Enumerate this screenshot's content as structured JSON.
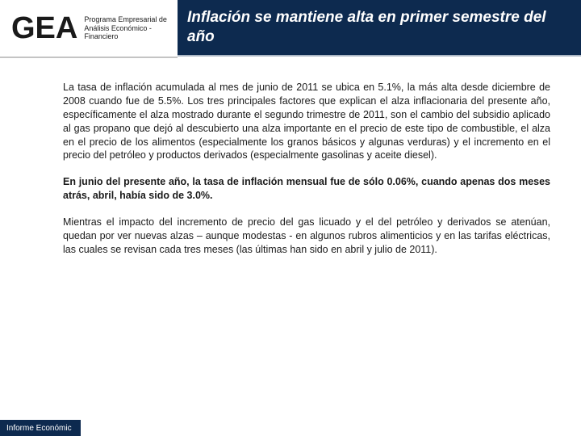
{
  "header": {
    "logo": "GEA",
    "logo_subtitle": "Programa Empresarial de\nAnálisis Económico -\nFinanciero",
    "title": "Inflación se mantiene alta en primer semestre del año",
    "header_bg": "#0d2a4f",
    "title_color": "#ffffff",
    "title_fontsize": 19
  },
  "body": {
    "paragraphs": [
      {
        "text": "La tasa de inflación acumulada al mes de junio de 2011 se ubica en 5.1%, la más alta desde diciembre de 2008 cuando fue de 5.5%. Los tres principales factores que explican el alza inflacionaria del presente año, específicamente el alza mostrado durante el segundo trimestre de 2011, son el cambio del subsidio aplicado al gas propano que dejó al descubierto una alza importante en el precio de este tipo de combustible, el alza en el precio de los alimentos (especialmente los granos básicos y algunas verduras) y el incremento en el precio del petróleo y productos derivados (especialmente gasolinas y aceite diesel).",
        "bold": false
      },
      {
        "text": "En junio del presente año, la tasa de inflación mensual fue de sólo 0.06%, cuando apenas dos meses atrás, abril, había sido de 3.0%.",
        "bold": true
      },
      {
        "text": "Mientras el impacto del incremento de precio del gas licuado y el del petróleo y derivados se atenúan, quedan por ver nuevas alzas – aunque modestas - en algunos rubros alimenticios y en las tarifas eléctricas, las cuales se revisan cada tres meses (las últimas han sido en abril y julio de 2011).",
        "bold": false
      }
    ],
    "fontsize": 12.5,
    "text_color": "#1a1a1a"
  },
  "footer": {
    "label": "Informe Económic",
    "bg": "#0d2a4f",
    "color": "#ffffff"
  }
}
